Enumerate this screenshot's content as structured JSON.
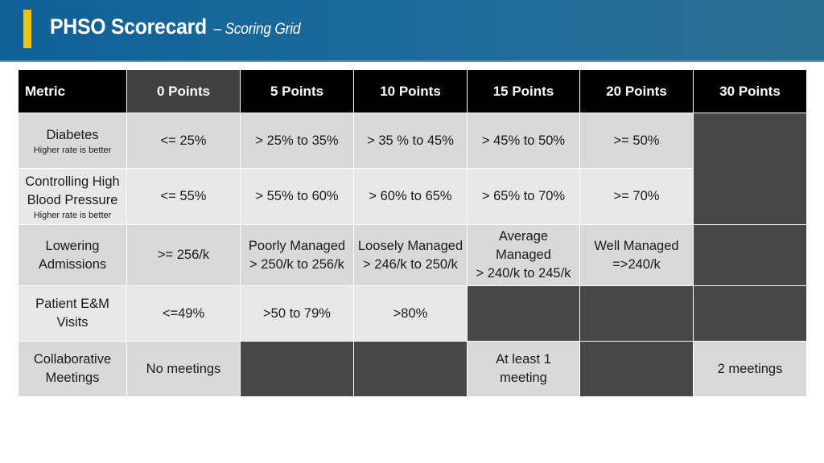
{
  "header": {
    "title": "PHSO Scorecard",
    "subtitle": "– Scoring Grid"
  },
  "table": {
    "headers": [
      "Metric",
      "0 Points",
      "5 Points",
      "10 Points",
      "15 Points",
      "20 Points",
      "30 Points"
    ],
    "rows": [
      {
        "metric": "Diabetes",
        "note": "Higher rate is better",
        "cells": [
          "<= 25%",
          "> 25% to 35%",
          "> 35 % to 45%",
          "> 45% to 50%",
          ">= 50%"
        ]
      },
      {
        "metric": "Controlling High Blood Pressure",
        "note": "Higher rate is better",
        "cells": [
          "<= 55%",
          "> 55% to 60%",
          "> 60% to 65%",
          "> 65% to 70%",
          ">= 70%"
        ]
      },
      {
        "metric": "Lowering Admissions",
        "cells": [
          ">= 256/k",
          [
            "Poorly Managed",
            "> 250/k to 256/k"
          ],
          [
            "Loosely Managed",
            "> 246/k to 250/k"
          ],
          [
            "Average",
            "Managed",
            "> 240/k to 245/k"
          ],
          [
            "Well Managed",
            "=>240/k"
          ]
        ]
      },
      {
        "metric": "Patient E&M Visits",
        "cells": [
          "<=49%",
          ">50 to 79%",
          ">80%"
        ]
      },
      {
        "metric": "Collaborative Meetings",
        "cells": [
          "No meetings",
          [
            "At least 1",
            "meeting"
          ],
          "2 meetings"
        ]
      }
    ]
  }
}
